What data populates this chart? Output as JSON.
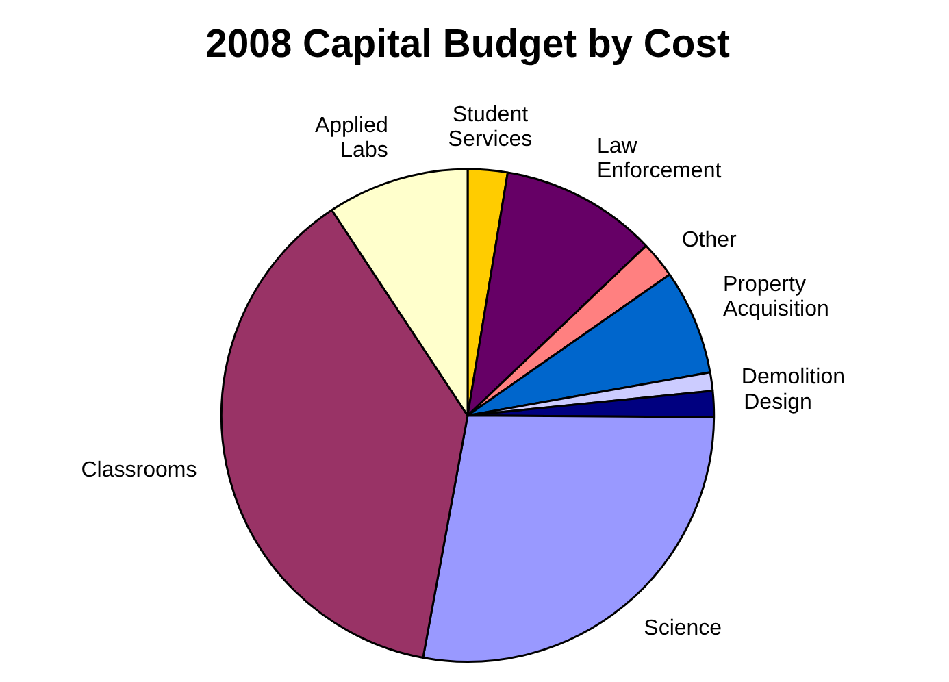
{
  "chart_data": {
    "type": "pie",
    "title": "2008 Capital Budget by Cost",
    "categories": [
      "Student Services",
      "Law Enforcement",
      "Other",
      "Property Acquisition",
      "Demolition",
      "Design",
      "Science",
      "Classrooms",
      "Applied Labs"
    ],
    "values": [
      2.6,
      10.3,
      2.4,
      6.9,
      1.2,
      1.7,
      27.8,
      37.8,
      9.3
    ],
    "colors": [
      "#ffcc00",
      "#660066",
      "#ff8080",
      "#0066cc",
      "#ccccff",
      "#000080",
      "#9999ff",
      "#993366",
      "#ffffcc"
    ],
    "legend": false
  }
}
